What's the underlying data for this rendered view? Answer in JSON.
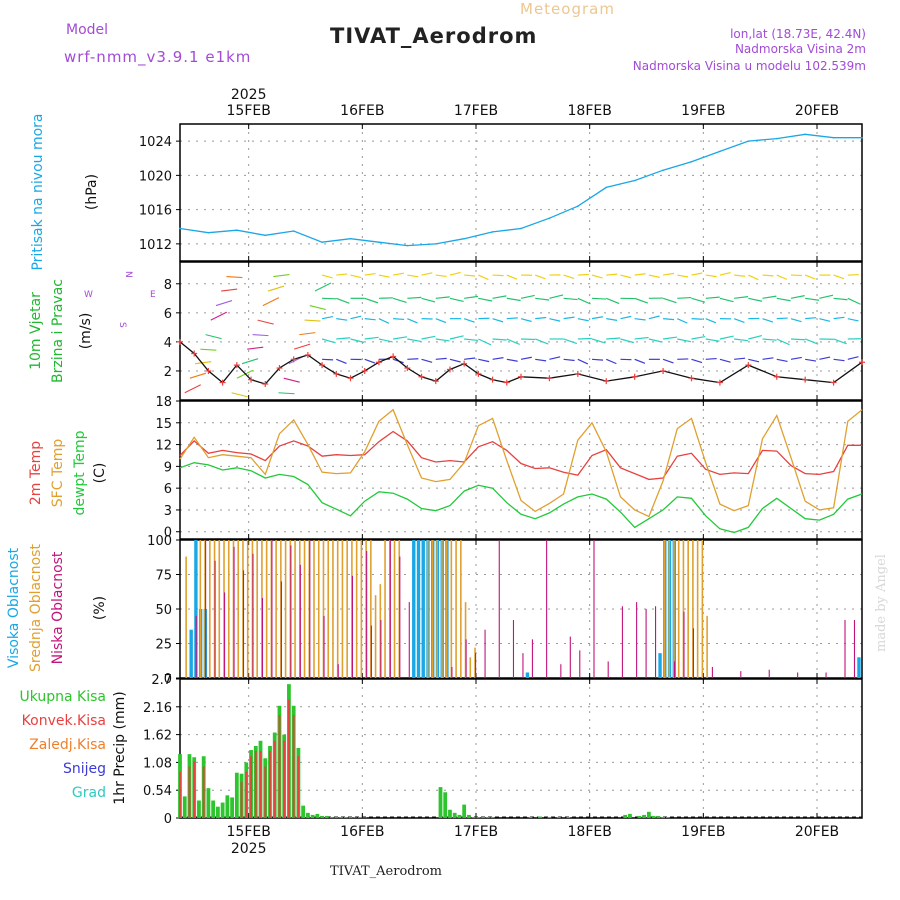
{
  "header": {
    "model_label": "Model",
    "model_name": "wrf-nmm_v3.9.1 e1km",
    "product": "Meteogram",
    "station": "TIVAT_Aerodrom",
    "lonlat": "lon,lat (18.73E, 42.4N)",
    "elevation": "Nadmorska Visina 2m",
    "model_elevation": "Nadmorska Visina u modelu 102.539m",
    "footer_station": "TIVAT_Aerodrom",
    "credit": "made by Angel"
  },
  "colors": {
    "pressure": "#1aa7e6",
    "temp2m": "#e8413f",
    "sfc_temp": "#e0a030",
    "dewpoint": "#22c93a",
    "high_cloud": "#1aa7e6",
    "mid_cloud": "#e0a030",
    "low_cloud": "#c0147a",
    "total_precip": "#2ec42e",
    "conv_precip": "#e8413f",
    "freezing_precip": "#ef7f2a",
    "snow": "#3b3bd6",
    "hail": "#2fc9c0",
    "wind_label": "#20b830",
    "title_purple": "#a24bd6"
  },
  "chart_data": [
    {
      "type": "line",
      "panel": "pressure",
      "title_left": "Pritisak na nivou mora",
      "unit_label": "(hPa)",
      "year_label": "2025",
      "x_tick_labels": [
        "15FEB",
        "16FEB",
        "17FEB",
        "18FEB",
        "19FEB",
        "20FEB"
      ],
      "ylim": [
        1010,
        1026
      ],
      "yticks": [
        1012,
        1016,
        1020,
        1024
      ],
      "grid": true,
      "series": [
        {
          "name": "Pritisak na nivou mora",
          "x": [
            0,
            6,
            12,
            18,
            24,
            30,
            36,
            42,
            48,
            54,
            60,
            66,
            72,
            78,
            84,
            90,
            96,
            102,
            108,
            114,
            120,
            126,
            132,
            138,
            144
          ],
          "y": [
            1013.8,
            1013.3,
            1013.6,
            1013.0,
            1013.5,
            1012.2,
            1012.6,
            1012.2,
            1011.8,
            1012.0,
            1012.6,
            1013.4,
            1013.8,
            1015.0,
            1016.4,
            1018.6,
            1019.4,
            1020.6,
            1021.6,
            1022.8,
            1024.0,
            1024.3,
            1024.8,
            1024.4,
            1024.4
          ]
        }
      ]
    },
    {
      "type": "scatter",
      "panel": "wind",
      "title_left": "10m Vjetar",
      "title_left2": "Brzina i Pravac",
      "unit_label": "(m/s)",
      "compass": [
        "N",
        "E",
        "S",
        "W"
      ],
      "ylim": [
        0,
        9.5
      ],
      "yticks": [
        2,
        4,
        6,
        8
      ],
      "grid": true,
      "series": [
        {
          "name": "Brzina",
          "x": [
            0,
            3,
            6,
            9,
            12,
            15,
            18,
            21,
            24,
            27,
            30,
            33,
            36,
            39,
            42,
            45,
            48,
            51,
            54,
            57,
            60,
            63,
            66,
            69,
            72,
            78,
            84,
            90,
            96,
            102,
            108,
            114,
            120,
            126,
            132,
            138,
            144
          ],
          "y": [
            4.0,
            3.2,
            2.0,
            1.2,
            2.4,
            1.4,
            1.1,
            2.2,
            2.8,
            3.1,
            2.4,
            1.8,
            1.5,
            2.0,
            2.6,
            3.0,
            2.2,
            1.6,
            1.3,
            2.1,
            2.5,
            1.8,
            1.4,
            1.2,
            1.6,
            1.5,
            1.8,
            1.3,
            1.6,
            2.0,
            1.5,
            1.2,
            2.4,
            1.6,
            1.4,
            1.2,
            2.6
          ]
        }
      ]
    },
    {
      "type": "line",
      "panel": "temperature",
      "title_left": "2m Temp",
      "title_left2": "SFC Temp",
      "title_left3": "dewpt Temp",
      "unit_label": "(C)",
      "ylim": [
        -1,
        18
      ],
      "yticks": [
        0,
        3,
        6,
        9,
        12,
        15,
        18
      ],
      "grid": true,
      "series": [
        {
          "name": "2m Temp",
          "x": [
            0,
            3,
            6,
            9,
            12,
            15,
            18,
            21,
            24,
            27,
            30,
            33,
            36,
            39,
            42,
            45,
            48,
            51,
            54,
            57,
            60,
            63,
            66,
            69,
            72,
            75,
            78,
            81,
            84,
            87,
            90,
            93,
            96,
            99,
            102,
            105,
            108,
            111,
            114,
            117,
            120,
            123,
            126,
            129,
            132,
            135,
            138,
            141,
            144
          ],
          "y": [
            10.5,
            12.5,
            10.8,
            11.2,
            10.9,
            10.7,
            9.8,
            11.8,
            12.5,
            11.8,
            10.4,
            10.6,
            10.5,
            10.6,
            12.4,
            13.8,
            12.5,
            10.2,
            9.6,
            9.8,
            9.6,
            11.7,
            12.4,
            11.2,
            9.4,
            8.7,
            8.8,
            8.2,
            7.8,
            10.5,
            11.3,
            8.8,
            8.0,
            7.2,
            7.4,
            10.4,
            10.8,
            8.6,
            7.9,
            8.1,
            8.0,
            11.2,
            11.1,
            9.1,
            8.0,
            7.9,
            8.3,
            11.9,
            11.9
          ]
        },
        {
          "name": "SFC Temp",
          "x": [
            0,
            3,
            6,
            9,
            12,
            15,
            18,
            21,
            24,
            27,
            30,
            33,
            36,
            39,
            42,
            45,
            48,
            51,
            54,
            57,
            60,
            63,
            66,
            69,
            72,
            75,
            78,
            81,
            84,
            87,
            90,
            93,
            96,
            99,
            102,
            105,
            108,
            111,
            114,
            117,
            120,
            123,
            126,
            129,
            132,
            135,
            138,
            141,
            144
          ],
          "y": [
            10.0,
            13.0,
            10.2,
            10.6,
            10.4,
            10.2,
            7.9,
            13.5,
            15.4,
            12.0,
            8.2,
            8.0,
            8.1,
            11.0,
            15.2,
            16.8,
            12.0,
            7.4,
            6.9,
            7.2,
            9.5,
            14.6,
            15.6,
            9.8,
            4.3,
            2.8,
            3.9,
            5.2,
            12.6,
            15.0,
            11.0,
            4.8,
            3.0,
            2.1,
            7.0,
            14.2,
            15.6,
            9.5,
            3.8,
            2.9,
            3.6,
            12.8,
            16.0,
            10.2,
            4.2,
            3.0,
            3.3,
            15.2,
            16.8
          ]
        },
        {
          "name": "dewpt Temp",
          "x": [
            0,
            3,
            6,
            9,
            12,
            15,
            18,
            21,
            24,
            27,
            30,
            33,
            36,
            39,
            42,
            45,
            48,
            51,
            54,
            57,
            60,
            63,
            66,
            69,
            72,
            75,
            78,
            81,
            84,
            87,
            90,
            93,
            96,
            99,
            102,
            105,
            108,
            111,
            114,
            117,
            120,
            123,
            126,
            129,
            132,
            135,
            138,
            141,
            144
          ],
          "y": [
            8.8,
            9.5,
            9.2,
            8.5,
            8.8,
            8.4,
            7.4,
            7.9,
            7.6,
            6.5,
            4.0,
            3.1,
            2.2,
            4.2,
            5.5,
            5.3,
            4.5,
            3.2,
            2.9,
            3.6,
            5.6,
            6.4,
            6.0,
            4.0,
            2.4,
            1.8,
            2.6,
            3.8,
            4.8,
            5.2,
            4.5,
            2.7,
            0.6,
            1.8,
            3.0,
            4.8,
            4.6,
            2.2,
            0.4,
            -0.1,
            0.6,
            3.2,
            4.6,
            3.2,
            1.8,
            1.6,
            2.4,
            4.5,
            5.2
          ]
        }
      ]
    },
    {
      "type": "bar",
      "panel": "cloud",
      "title_left": "Visoka Oblacnost",
      "title_left2": "Srednja Oblacnost",
      "title_left3": "Niska Oblacnost",
      "unit_label": "(%)",
      "ylim": [
        0,
        100
      ],
      "yticks": [
        0,
        25,
        50,
        75,
        100
      ],
      "grid": true,
      "series": [
        {
          "name": "Visoka Oblacnost",
          "x": [
            2,
            3,
            4,
            5,
            49,
            50,
            51,
            52,
            53,
            54,
            55,
            56,
            73,
            101,
            102,
            103,
            104,
            143
          ],
          "y": [
            35,
            100,
            50,
            50,
            100,
            100,
            100,
            100,
            100,
            100,
            100,
            100,
            4,
            18,
            100,
            100,
            100,
            15
          ]
        },
        {
          "name": "Srednja Oblacnost",
          "x": [
            1,
            4,
            5,
            6,
            7,
            8,
            9,
            10,
            11,
            12,
            13,
            14,
            15,
            16,
            17,
            18,
            19,
            20,
            21,
            22,
            23,
            24,
            25,
            26,
            27,
            28,
            29,
            30,
            31,
            32,
            33,
            34,
            35,
            36,
            37,
            38,
            39,
            40,
            41,
            42,
            43,
            44,
            45,
            46,
            52,
            53,
            54,
            55,
            56,
            57,
            58,
            59,
            60,
            61,
            62,
            102,
            103,
            104,
            105,
            106,
            107,
            108,
            109,
            110,
            111
          ],
          "y": [
            88,
            100,
            100,
            100,
            100,
            100,
            100,
            100,
            100,
            100,
            100,
            100,
            100,
            100,
            100,
            100,
            100,
            100,
            100,
            100,
            100,
            100,
            100,
            100,
            100,
            100,
            100,
            100,
            100,
            100,
            100,
            100,
            100,
            100,
            100,
            100,
            100,
            100,
            60,
            68,
            100,
            100,
            100,
            100,
            100,
            100,
            100,
            100,
            100,
            100,
            100,
            100,
            55,
            15,
            22,
            100,
            100,
            100,
            100,
            100,
            100,
            100,
            100,
            100,
            45
          ]
        },
        {
          "name": "Niska Oblacnost",
          "x": [
            3,
            5,
            7,
            9,
            11,
            13,
            15,
            17,
            19,
            21,
            23,
            25,
            27,
            30,
            33,
            36,
            39,
            40,
            42,
            44,
            46,
            48,
            57,
            60,
            62,
            64,
            67,
            70,
            72,
            74,
            77,
            80,
            82,
            84,
            87,
            90,
            93,
            96,
            98,
            100,
            104,
            106,
            108,
            112,
            118,
            124,
            130,
            136,
            140,
            142
          ],
          "y": [
            45,
            100,
            85,
            62,
            95,
            78,
            90,
            58,
            100,
            70,
            96,
            82,
            100,
            45,
            10,
            74,
            92,
            38,
            42,
            100,
            88,
            55,
            8,
            28,
            18,
            35,
            100,
            42,
            18,
            28,
            100,
            10,
            30,
            20,
            100,
            12,
            52,
            55,
            50,
            52,
            12,
            48,
            36,
            8,
            5,
            6,
            4,
            4,
            42,
            42
          ]
        }
      ]
    },
    {
      "type": "bar",
      "panel": "precip",
      "title_left": "Ukupna Kisa",
      "title_left2": "Konvek.Kisa",
      "title_left3": "Zaledj.Kisa",
      "title_left4": "Snijeg",
      "title_left5": "Grad",
      "unit_label": "1hr Precip (mm)",
      "ylim": [
        0,
        2.7
      ],
      "yticks": [
        0,
        0.54,
        1.08,
        1.62,
        2.16,
        2.7
      ],
      "ytick_labels": [
        "0",
        "0.54",
        "1.08",
        "1.62",
        "2.16",
        "2.7"
      ],
      "year_label": "2025",
      "x_tick_labels": [
        "15FEB",
        "16FEB",
        "17FEB",
        "18FEB",
        "19FEB",
        "20FEB"
      ],
      "grid": true,
      "series": [
        {
          "name": "Ukupna Kisa",
          "x": [
            0,
            1,
            2,
            3,
            4,
            5,
            6,
            7,
            8,
            9,
            10,
            11,
            12,
            13,
            14,
            15,
            16,
            17,
            18,
            19,
            20,
            21,
            22,
            23,
            24,
            25,
            26,
            27,
            28,
            29,
            30,
            31,
            32,
            33,
            34,
            35,
            36,
            37,
            38,
            39,
            55,
            56,
            57,
            58,
            59,
            60,
            61,
            62,
            63,
            64,
            65,
            66,
            74,
            76,
            78,
            80,
            82,
            94,
            95,
            97,
            98,
            99,
            100,
            101,
            102,
            103
          ],
          "y": [
            1.24,
            0.42,
            1.24,
            1.18,
            0.34,
            1.2,
            0.58,
            0.34,
            0.22,
            0.3,
            0.44,
            0.4,
            0.88,
            0.86,
            1.08,
            1.32,
            1.4,
            1.5,
            1.16,
            1.4,
            1.66,
            2.18,
            1.62,
            2.6,
            2.18,
            1.36,
            0.24,
            0.1,
            0.06,
            0.08,
            0.04,
            0.04,
            0.02,
            0.02,
            0.02,
            0.02,
            0.02,
            0.01,
            0.02,
            0.01,
            0.6,
            0.5,
            0.16,
            0.1,
            0.06,
            0.26,
            0.06,
            0.02,
            0.02,
            0.02,
            0.02,
            0.02,
            0.02,
            0.03,
            0.02,
            0.02,
            0.02,
            0.06,
            0.08,
            0.04,
            0.06,
            0.12,
            0.04,
            0.04,
            0.02,
            0.02
          ]
        },
        {
          "name": "Konvek.Kisa",
          "x": [
            0,
            2,
            3,
            5,
            13,
            14,
            15,
            16,
            17,
            18,
            19,
            20,
            21,
            22,
            23,
            24,
            25
          ],
          "y": [
            0.9,
            1.0,
            1.1,
            1.0,
            0.7,
            0.9,
            1.2,
            1.3,
            1.3,
            1.0,
            1.3,
            1.5,
            2.0,
            1.5,
            2.3,
            2.0,
            1.2
          ]
        }
      ]
    }
  ]
}
